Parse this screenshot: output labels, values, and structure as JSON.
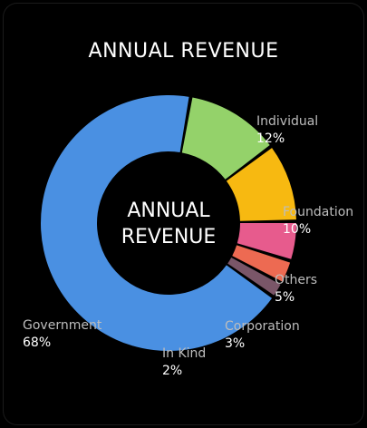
{
  "title": "ANNUAL REVENUE",
  "center": {
    "line1": "ANNUAL",
    "line2": "REVENUE"
  },
  "chart_data": {
    "type": "pie",
    "title": "ANNUAL REVENUE",
    "style": "donut",
    "categories": [
      "Individual",
      "Foundation",
      "Others",
      "Corporation",
      "In Kind",
      "Government"
    ],
    "values": [
      12,
      10,
      5,
      3,
      2,
      68
    ],
    "labels": [
      "12%",
      "10%",
      "5%",
      "3%",
      "2%",
      "68%"
    ],
    "colors": [
      "#94d26a",
      "#f7b911",
      "#e75b8d",
      "#ed6a52",
      "#7a5668",
      "#4a90e2"
    ],
    "legend": "outside labels"
  }
}
